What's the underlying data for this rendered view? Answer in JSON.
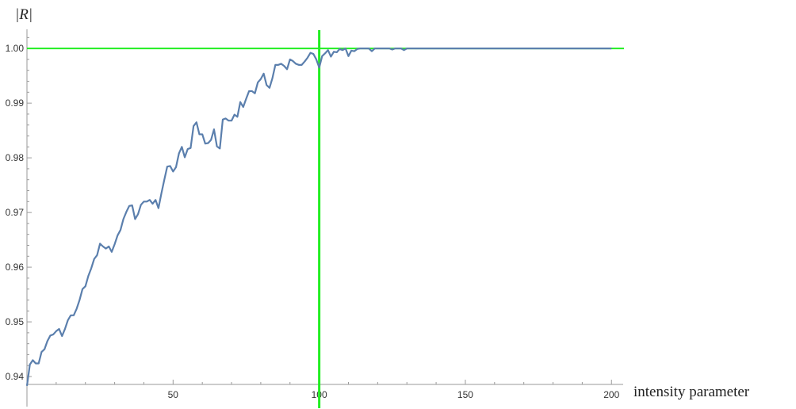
{
  "chart_data": {
    "type": "line",
    "title": "",
    "xlabel": "intensity parameter",
    "ylabel": "|R|",
    "xlim": [
      0,
      204
    ],
    "ylim": [
      0.9345,
      1.0035
    ],
    "grid": false,
    "x_ticks": [
      {
        "value": 50,
        "label": "50"
      },
      {
        "value": 100,
        "label": "100"
      },
      {
        "value": 150,
        "label": "150"
      },
      {
        "value": 200,
        "label": "200"
      }
    ],
    "y_ticks": [
      {
        "value": 0.94,
        "label": "0.94"
      },
      {
        "value": 0.95,
        "label": "0.95"
      },
      {
        "value": 0.96,
        "label": "0.96"
      },
      {
        "value": 0.97,
        "label": "0.97"
      },
      {
        "value": 0.98,
        "label": "0.98"
      },
      {
        "value": 0.99,
        "label": "0.99"
      },
      {
        "value": 1.0,
        "label": "1.00"
      }
    ],
    "reference_lines": {
      "horizontal": 1.0,
      "vertical": 100,
      "color": "#22ee22"
    },
    "series_color": "#5b7fad",
    "series": [
      {
        "x": [
          0,
          1,
          2,
          3,
          4,
          5,
          6,
          7,
          8,
          9,
          10,
          11,
          12,
          13,
          14,
          15,
          16,
          17,
          18,
          19,
          20,
          21,
          22,
          23,
          24,
          25,
          26,
          27,
          28,
          29,
          30,
          31,
          32,
          33,
          34,
          35,
          36,
          37,
          38,
          39,
          40,
          41,
          42,
          43,
          44,
          45,
          46,
          47,
          48,
          49,
          50,
          51,
          52,
          53,
          54,
          55,
          56,
          57,
          58,
          59,
          60,
          61,
          62,
          63,
          64,
          65,
          66,
          67,
          68,
          69,
          70,
          71,
          72,
          73,
          74,
          75,
          76,
          77,
          78,
          79,
          80,
          81,
          82,
          83,
          84,
          85,
          86,
          87,
          88,
          89,
          90,
          91,
          92,
          93,
          94,
          95,
          96,
          97,
          98,
          99,
          100,
          101,
          102,
          103,
          104,
          105,
          106,
          107,
          108,
          109,
          110,
          111,
          112,
          113,
          114,
          115,
          116,
          117,
          118,
          119,
          120,
          121,
          122,
          123,
          124,
          125,
          126,
          127,
          128,
          129,
          130,
          131,
          132,
          133,
          134,
          135,
          140,
          150,
          160,
          170,
          180,
          190,
          200
        ],
        "y": [
          0.9383,
          0.9422,
          0.943,
          0.9424,
          0.9424,
          0.9445,
          0.945,
          0.9465,
          0.9475,
          0.9477,
          0.9483,
          0.9487,
          0.9474,
          0.9487,
          0.9503,
          0.9512,
          0.9512,
          0.9524,
          0.954,
          0.956,
          0.9565,
          0.9584,
          0.9598,
          0.9615,
          0.9622,
          0.9643,
          0.9638,
          0.9634,
          0.9638,
          0.9628,
          0.9642,
          0.9658,
          0.9668,
          0.9688,
          0.9701,
          0.9712,
          0.9713,
          0.9688,
          0.9697,
          0.9714,
          0.972,
          0.972,
          0.9723,
          0.9716,
          0.9723,
          0.9708,
          0.9735,
          0.976,
          0.9784,
          0.9785,
          0.9775,
          0.9783,
          0.9808,
          0.982,
          0.9801,
          0.9816,
          0.9818,
          0.9858,
          0.9865,
          0.9843,
          0.9843,
          0.9826,
          0.9827,
          0.9833,
          0.9852,
          0.9821,
          0.9817,
          0.987,
          0.9872,
          0.9868,
          0.9868,
          0.9879,
          0.9875,
          0.9902,
          0.9893,
          0.9908,
          0.9922,
          0.9922,
          0.9918,
          0.9938,
          0.9944,
          0.9954,
          0.9933,
          0.9928,
          0.9946,
          0.997,
          0.997,
          0.9972,
          0.9968,
          0.9962,
          0.998,
          0.9977,
          0.9972,
          0.997,
          0.997,
          0.9976,
          0.9983,
          0.9992,
          0.999,
          0.998,
          0.9965,
          0.9986,
          0.9991,
          0.9997,
          0.9985,
          0.9994,
          0.9993,
          0.9999,
          0.9997,
          1.0,
          0.9986,
          0.9996,
          0.9995,
          0.9999,
          1.0,
          1.0,
          1.0,
          1.0,
          0.9995,
          1.0,
          1.0,
          1.0,
          1.0,
          1.0,
          1.0,
          0.9998,
          1.0,
          1.0,
          1.0,
          0.9997,
          1.0,
          1.0,
          1.0,
          1.0,
          1.0,
          1.0,
          1.0,
          1.0,
          1.0,
          1.0,
          1.0,
          1.0,
          1.0
        ]
      }
    ]
  }
}
